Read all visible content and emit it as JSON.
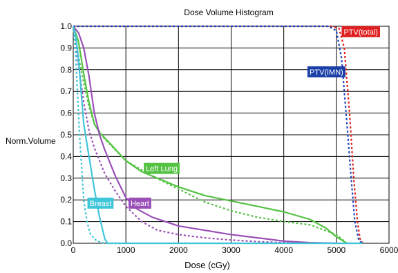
{
  "chart_data": {
    "type": "line",
    "title": "Dose Volume Histogram",
    "xlabel": "Dose (cGy)",
    "ylabel": "Norm.Volume",
    "xlim": [
      0,
      6000
    ],
    "ylim": [
      0,
      1.0
    ],
    "grid": true,
    "x_ticks": [
      "0",
      "1000",
      "2000",
      "3000",
      "4000",
      "5000",
      "6000"
    ],
    "y_ticks": [
      "0.0",
      "0.1",
      "0.2",
      "0.3",
      "0.4",
      "0.5",
      "0.6",
      "0.7",
      "0.8",
      "0.9",
      "1.0"
    ],
    "series": [
      {
        "name": "PTV(total)",
        "label_color": "#e02020",
        "color": "#e02020",
        "style": "dotted",
        "points": [
          [
            0,
            1.0
          ],
          [
            4900,
            1.0
          ],
          [
            5050,
            0.99
          ],
          [
            5150,
            0.9
          ],
          [
            5250,
            0.6
          ],
          [
            5330,
            0.3
          ],
          [
            5400,
            0.1
          ],
          [
            5450,
            0.02
          ],
          [
            5500,
            0
          ]
        ]
      },
      {
        "name": "PTV(IMN)",
        "label_color": "#1a3fa8",
        "color": "#2244c0",
        "style": "dotted",
        "points": [
          [
            0,
            1.0
          ],
          [
            4850,
            1.0
          ],
          [
            5000,
            0.98
          ],
          [
            5100,
            0.85
          ],
          [
            5200,
            0.55
          ],
          [
            5280,
            0.3
          ],
          [
            5350,
            0.1
          ],
          [
            5420,
            0.02
          ],
          [
            5480,
            0
          ]
        ]
      },
      {
        "name": "Left Lung",
        "label_color": "#55c244",
        "color": "#55c244",
        "style": "solid",
        "points": [
          [
            0,
            1.0
          ],
          [
            100,
            0.93
          ],
          [
            200,
            0.78
          ],
          [
            300,
            0.65
          ],
          [
            400,
            0.55
          ],
          [
            500,
            0.51
          ],
          [
            700,
            0.46
          ],
          [
            1000,
            0.38
          ],
          [
            1300,
            0.33
          ],
          [
            1700,
            0.29
          ],
          [
            2000,
            0.26
          ],
          [
            2500,
            0.22
          ],
          [
            3000,
            0.195
          ],
          [
            3500,
            0.17
          ],
          [
            4000,
            0.145
          ],
          [
            4500,
            0.11
          ],
          [
            4800,
            0.07
          ],
          [
            5000,
            0.03
          ],
          [
            5200,
            0
          ]
        ]
      },
      {
        "name": "Left Lung (dotted)",
        "color": "#55c244",
        "style": "dotted",
        "points": [
          [
            0,
            1.0
          ],
          [
            100,
            0.86
          ],
          [
            200,
            0.74
          ],
          [
            300,
            0.63
          ],
          [
            400,
            0.55
          ],
          [
            600,
            0.48
          ],
          [
            800,
            0.43
          ],
          [
            1000,
            0.38
          ],
          [
            1500,
            0.31
          ],
          [
            2000,
            0.25
          ],
          [
            2500,
            0.19
          ],
          [
            3000,
            0.15
          ],
          [
            3500,
            0.12
          ],
          [
            4000,
            0.1
          ],
          [
            4500,
            0.085
          ],
          [
            5000,
            0.04
          ],
          [
            5200,
            0
          ]
        ]
      },
      {
        "name": "Heart",
        "label_color": "#9a4fb8",
        "color": "#9a4fb8",
        "style": "solid",
        "points": [
          [
            0,
            1.0
          ],
          [
            100,
            0.97
          ],
          [
            200,
            0.9
          ],
          [
            300,
            0.77
          ],
          [
            400,
            0.6
          ],
          [
            500,
            0.5
          ],
          [
            600,
            0.43
          ],
          [
            800,
            0.31
          ],
          [
            1000,
            0.21
          ],
          [
            1200,
            0.16
          ],
          [
            1500,
            0.12
          ],
          [
            2000,
            0.08
          ],
          [
            2500,
            0.06
          ],
          [
            3000,
            0.04
          ],
          [
            3500,
            0.025
          ],
          [
            4000,
            0.01
          ],
          [
            4500,
            0.003
          ],
          [
            5000,
            0
          ]
        ]
      },
      {
        "name": "Heart (dotted)",
        "color": "#9a4fb8",
        "style": "dotted",
        "points": [
          [
            0,
            1.0
          ],
          [
            100,
            0.82
          ],
          [
            200,
            0.65
          ],
          [
            300,
            0.52
          ],
          [
            400,
            0.44
          ],
          [
            500,
            0.38
          ],
          [
            600,
            0.32
          ],
          [
            800,
            0.24
          ],
          [
            1000,
            0.17
          ],
          [
            1300,
            0.1
          ],
          [
            1600,
            0.06
          ],
          [
            2000,
            0.04
          ],
          [
            2500,
            0.025
          ],
          [
            3000,
            0.015
          ],
          [
            3500,
            0.008
          ],
          [
            4000,
            0.003
          ],
          [
            5000,
            0
          ]
        ]
      },
      {
        "name": "Breast",
        "label_color": "#3fc6d8",
        "color": "#3fc6d8",
        "style": "solid",
        "points": [
          [
            0,
            1.0
          ],
          [
            50,
            0.95
          ],
          [
            100,
            0.85
          ],
          [
            150,
            0.7
          ],
          [
            200,
            0.55
          ],
          [
            300,
            0.4
          ],
          [
            400,
            0.25
          ],
          [
            500,
            0.12
          ],
          [
            600,
            0.02
          ],
          [
            650,
            0
          ],
          [
            5500,
            0
          ]
        ]
      },
      {
        "name": "Breast (dotted)",
        "color": "#3fc6d8",
        "style": "dotted",
        "points": [
          [
            0,
            1.0
          ],
          [
            40,
            0.9
          ],
          [
            80,
            0.7
          ],
          [
            120,
            0.5
          ],
          [
            160,
            0.35
          ],
          [
            200,
            0.2
          ],
          [
            260,
            0.1
          ],
          [
            330,
            0.04
          ],
          [
            450,
            0.01
          ],
          [
            600,
            0
          ],
          [
            5500,
            0
          ]
        ]
      }
    ],
    "labels": [
      {
        "text": "PTV(total)",
        "series": "PTV(total)",
        "text_color": "#ffffff"
      },
      {
        "text": "PTV(IMN)",
        "series": "PTV(IMN)",
        "text_color": "#ffffff"
      },
      {
        "text": "Left Lung",
        "series": "Left Lung",
        "text_color": "#ffffff"
      },
      {
        "text": "Heart",
        "series": "Heart",
        "text_color": "#ffffff"
      },
      {
        "text": "Breast",
        "series": "Breast",
        "text_color": "#ffffff"
      }
    ]
  }
}
